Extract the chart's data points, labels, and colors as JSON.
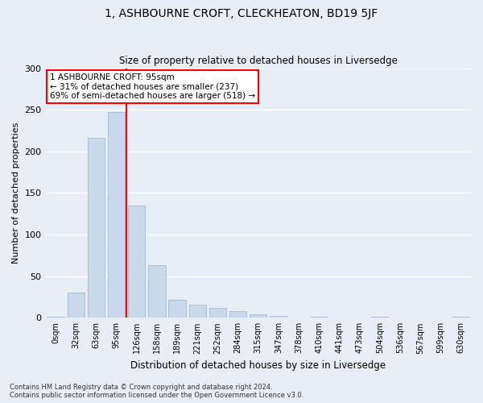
{
  "title": "1, ASHBOURNE CROFT, CLECKHEATON, BD19 5JF",
  "subtitle": "Size of property relative to detached houses in Liversedge",
  "xlabel": "Distribution of detached houses by size in Liversedge",
  "ylabel": "Number of detached properties",
  "bar_labels": [
    "0sqm",
    "32sqm",
    "63sqm",
    "95sqm",
    "126sqm",
    "158sqm",
    "189sqm",
    "221sqm",
    "252sqm",
    "284sqm",
    "315sqm",
    "347sqm",
    "378sqm",
    "410sqm",
    "441sqm",
    "473sqm",
    "504sqm",
    "536sqm",
    "567sqm",
    "599sqm",
    "630sqm"
  ],
  "bar_values": [
    1,
    30,
    216,
    247,
    135,
    63,
    22,
    16,
    12,
    8,
    4,
    2,
    0,
    1,
    0,
    0,
    1,
    0,
    0,
    0,
    1
  ],
  "bar_color": "#c9d9ec",
  "bar_edge_color": "#a0b8d8",
  "vline_x": 3.5,
  "vline_color": "red",
  "annotation_text": "1 ASHBOURNE CROFT: 95sqm\n← 31% of detached houses are smaller (237)\n69% of semi-detached houses are larger (518) →",
  "annotation_box_color": "white",
  "annotation_box_edge": "red",
  "ylim": [
    0,
    300
  ],
  "yticks": [
    0,
    50,
    100,
    150,
    200,
    250,
    300
  ],
  "background_color": "#e8eef5",
  "grid_color": "white",
  "title_fontsize": 10,
  "subtitle_fontsize": 9,
  "footer": "Contains HM Land Registry data © Crown copyright and database right 2024.\nContains public sector information licensed under the Open Government Licence v3.0."
}
